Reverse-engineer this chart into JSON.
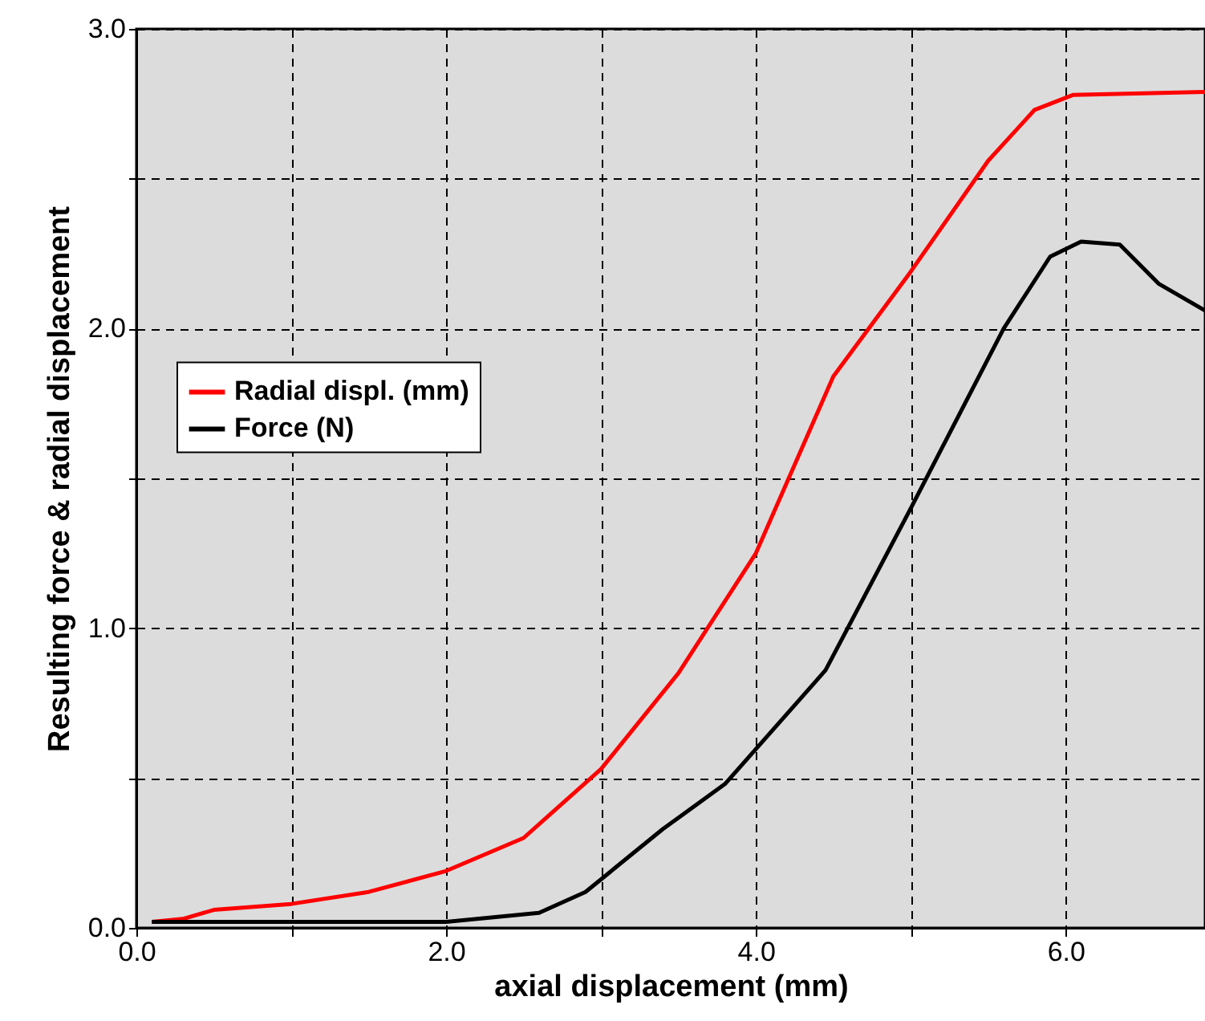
{
  "chart_data": {
    "type": "line",
    "xlabel": "axial displacement (mm)",
    "ylabel": "Resulting force & radial displacement",
    "xlim": [
      0,
      6.9
    ],
    "ylim": [
      0,
      3.0
    ],
    "xticks": [
      {
        "value": 0,
        "label": "0.0"
      },
      {
        "value": 1,
        "label": null
      },
      {
        "value": 2,
        "label": "2.0"
      },
      {
        "value": 3,
        "label": null
      },
      {
        "value": 4,
        "label": "4.0"
      },
      {
        "value": 5,
        "label": null
      },
      {
        "value": 6,
        "label": "6.0"
      }
    ],
    "yticks": [
      {
        "value": 0,
        "label": "0.0"
      },
      {
        "value": 0.5,
        "label": null
      },
      {
        "value": 1,
        "label": "1.0"
      },
      {
        "value": 1.5,
        "label": null
      },
      {
        "value": 2,
        "label": "2.0"
      },
      {
        "value": 2.5,
        "label": null
      },
      {
        "value": 3,
        "label": "3.0"
      }
    ],
    "grid": true,
    "legend": "left",
    "line_style": "solid",
    "marker": "none",
    "series": [
      {
        "name": "Radial displ. (mm)",
        "color": "#ff0000",
        "x": [
          0.1,
          0.3,
          0.5,
          1.0,
          1.5,
          2.0,
          2.5,
          3.0,
          3.5,
          4.0,
          4.5,
          5.0,
          5.5,
          5.8,
          6.05,
          6.9
        ],
        "values": [
          0.02,
          0.03,
          0.06,
          0.08,
          0.12,
          0.19,
          0.3,
          0.53,
          0.85,
          1.25,
          1.84,
          2.19,
          2.56,
          2.73,
          2.78,
          2.79
        ]
      },
      {
        "name": "Force (N)",
        "color": "#000000",
        "x": [
          0.1,
          1.0,
          2.0,
          2.2,
          2.6,
          2.9,
          3.4,
          3.8,
          4.45,
          5.0,
          5.6,
          5.9,
          6.1,
          6.35,
          6.6,
          6.9
        ],
        "values": [
          0.02,
          0.02,
          0.02,
          0.03,
          0.05,
          0.12,
          0.33,
          0.48,
          0.86,
          1.4,
          2.0,
          2.24,
          2.29,
          2.28,
          2.15,
          2.06
        ]
      }
    ]
  }
}
